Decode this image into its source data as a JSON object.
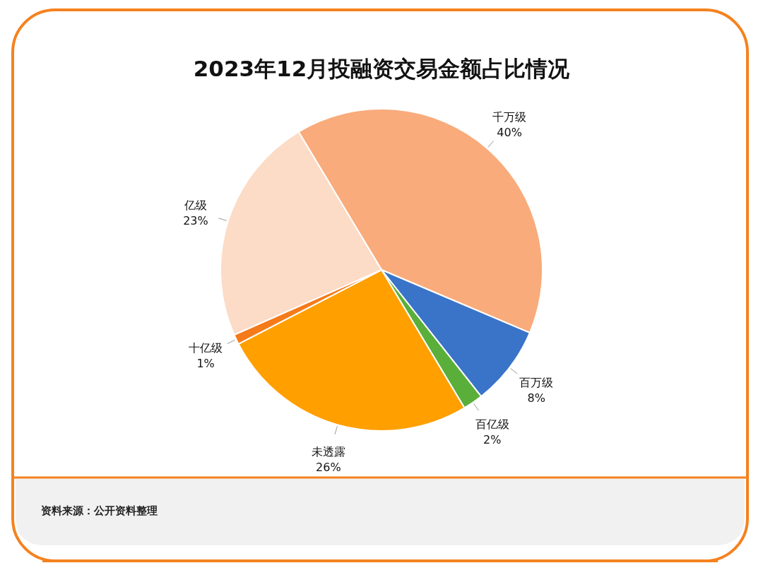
{
  "chart_data": {
    "type": "pie",
    "title": "2023年12月投融资交易金额占比情况",
    "categories": [
      "千万级",
      "百万级",
      "百亿级",
      "未透露",
      "十亿级",
      "亿级"
    ],
    "values": [
      40,
      8,
      2,
      26,
      1,
      23
    ],
    "colors": [
      "#f9ab7b",
      "#3a74c8",
      "#5aaf3a",
      "#ff9f00",
      "#f57b1a",
      "#fcdcc7"
    ],
    "value_labels": [
      "40%",
      "8%",
      "2%",
      "26%",
      "1%",
      "23%"
    ],
    "annotations": [
      "资料来源：公开资料整理"
    ]
  }
}
